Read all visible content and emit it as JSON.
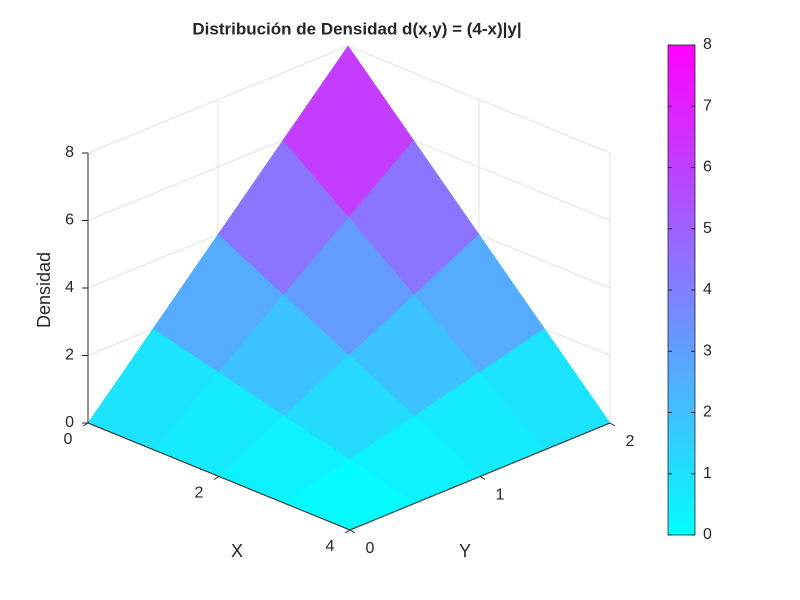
{
  "chart_data": {
    "type": "surface",
    "title": "Distribución de Densidad d(x,y) = (4-x)|y|",
    "x_label": "X",
    "y_label": "Y",
    "z_label": "Densidad",
    "x": [
      0,
      1,
      2,
      3,
      4
    ],
    "y": [
      0,
      0.5,
      1,
      1.5,
      2
    ],
    "z": [
      [
        0,
        2,
        4,
        6,
        8
      ],
      [
        0,
        1.5,
        3,
        4.5,
        6
      ],
      [
        0,
        1,
        2,
        3,
        4
      ],
      [
        0,
        0.5,
        1,
        1.5,
        2
      ],
      [
        0,
        0,
        0,
        0,
        0
      ]
    ],
    "xlim": [
      0,
      4
    ],
    "ylim": [
      0,
      2
    ],
    "zlim": [
      0,
      8
    ],
    "xticks": [
      0,
      2,
      4
    ],
    "yticks": [
      0,
      1,
      2
    ],
    "zticks": [
      0,
      2,
      4,
      6,
      8
    ],
    "grid": true,
    "colormap": [
      "#00ffff",
      "#ff00ff"
    ],
    "clim": [
      0,
      8
    ],
    "colorbar_ticks": [
      0,
      1,
      2,
      3,
      4,
      5,
      6,
      7,
      8
    ]
  }
}
